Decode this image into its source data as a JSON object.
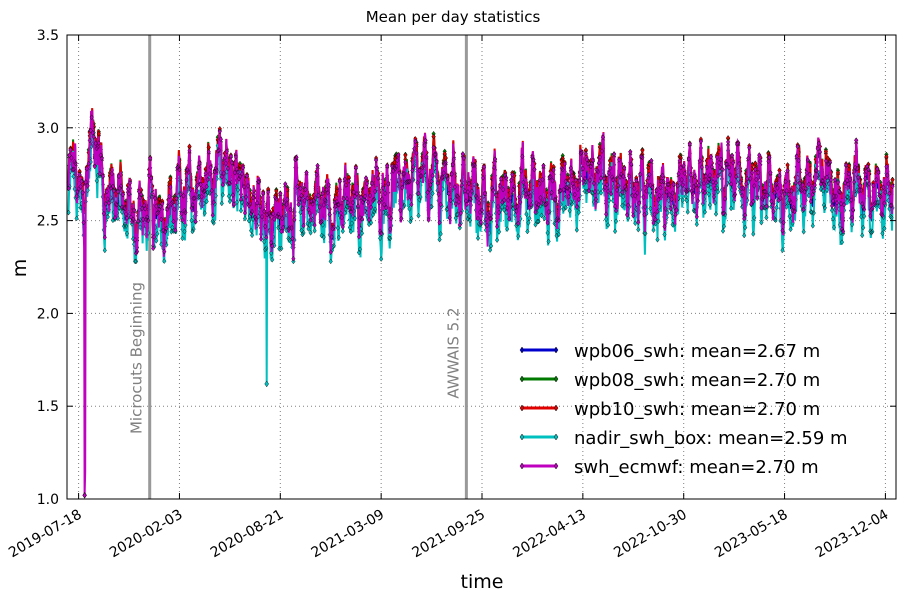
{
  "chart_data": {
    "type": "line",
    "title": "Mean per day statistics",
    "xlabel": "time",
    "ylabel": "m",
    "x_range": [
      "2019-06-25",
      "2023-12-25"
    ],
    "ylim": [
      1.0,
      3.5
    ],
    "grid": true,
    "legend_position": "lower-right",
    "x_ticks": [
      "2019-07-18",
      "2020-02-03",
      "2020-08-21",
      "2021-03-09",
      "2021-09-25",
      "2022-04-13",
      "2022-10-30",
      "2023-05-18",
      "2023-12-04"
    ],
    "y_ticks": [
      "1.0",
      "1.5",
      "2.0",
      "2.5",
      "3.0",
      "3.5"
    ],
    "events": [
      {
        "date": "2019-12-06",
        "label": "Microcuts Beginning"
      },
      {
        "date": "2021-08-25",
        "label": "AWWAIS 5.2"
      }
    ],
    "outliers": [
      {
        "series": "nadir_swh_box",
        "date": "2020-07-25",
        "value": 1.62
      },
      {
        "series": "swh_ecmwf",
        "date": "2019-07-30",
        "value": 1.02
      }
    ],
    "series": [
      {
        "name": "wpb06_swh",
        "label": "wpb06_swh: mean=2.67 m",
        "color": "#0000cc",
        "mean": 2.67,
        "offset": 0.0
      },
      {
        "name": "wpb08_swh",
        "label": "wpb08_swh: mean=2.70 m",
        "color": "#007a00",
        "mean": 2.7,
        "offset": 0.03
      },
      {
        "name": "wpb10_swh",
        "label": "wpb10_swh: mean=2.70 m",
        "color": "#e00000",
        "mean": 2.7,
        "offset": 0.03
      },
      {
        "name": "nadir_swh_box",
        "label": "nadir_swh_box: mean=2.59 m",
        "color": "#00bfbf",
        "mean": 2.59,
        "offset": -0.08
      },
      {
        "name": "swh_ecmwf",
        "label": "swh_ecmwf: mean=2.70 m",
        "color": "#bf00bf",
        "mean": 2.7,
        "offset": 0.0
      }
    ],
    "profile": [
      {
        "date": "2019-07-01",
        "value": 2.68
      },
      {
        "date": "2019-07-10",
        "value": 2.86
      },
      {
        "date": "2019-07-22",
        "value": 2.55
      },
      {
        "date": "2019-08-05",
        "value": 2.78
      },
      {
        "date": "2019-08-20",
        "value": 3.02
      },
      {
        "date": "2019-09-05",
        "value": 2.62
      },
      {
        "date": "2019-09-25",
        "value": 2.7
      },
      {
        "date": "2019-10-15",
        "value": 2.58
      },
      {
        "date": "2019-11-05",
        "value": 2.5
      },
      {
        "date": "2019-12-01",
        "value": 2.56
      },
      {
        "date": "2020-01-01",
        "value": 2.55
      },
      {
        "date": "2020-02-01",
        "value": 2.62
      },
      {
        "date": "2020-03-01",
        "value": 2.68
      },
      {
        "date": "2020-04-01",
        "value": 2.7
      },
      {
        "date": "2020-05-01",
        "value": 2.78
      },
      {
        "date": "2020-06-01",
        "value": 2.68
      },
      {
        "date": "2020-07-01",
        "value": 2.64
      },
      {
        "date": "2020-08-01",
        "value": 2.52
      },
      {
        "date": "2020-09-01",
        "value": 2.55
      },
      {
        "date": "2020-10-01",
        "value": 2.6
      },
      {
        "date": "2020-11-01",
        "value": 2.62
      },
      {
        "date": "2020-12-01",
        "value": 2.55
      },
      {
        "date": "2021-01-01",
        "value": 2.6
      },
      {
        "date": "2021-02-01",
        "value": 2.62
      },
      {
        "date": "2021-03-01",
        "value": 2.63
      },
      {
        "date": "2021-04-01",
        "value": 2.68
      },
      {
        "date": "2021-05-01",
        "value": 2.72
      },
      {
        "date": "2021-06-01",
        "value": 2.74
      },
      {
        "date": "2021-07-01",
        "value": 2.72
      },
      {
        "date": "2021-08-01",
        "value": 2.7
      },
      {
        "date": "2021-09-01",
        "value": 2.66
      },
      {
        "date": "2021-10-01",
        "value": 2.6
      },
      {
        "date": "2021-11-01",
        "value": 2.62
      },
      {
        "date": "2021-12-01",
        "value": 2.66
      },
      {
        "date": "2022-01-01",
        "value": 2.66
      },
      {
        "date": "2022-02-01",
        "value": 2.64
      },
      {
        "date": "2022-03-01",
        "value": 2.66
      },
      {
        "date": "2022-04-01",
        "value": 2.72
      },
      {
        "date": "2022-05-01",
        "value": 2.78
      },
      {
        "date": "2022-06-01",
        "value": 2.74
      },
      {
        "date": "2022-07-01",
        "value": 2.68
      },
      {
        "date": "2022-08-01",
        "value": 2.66
      },
      {
        "date": "2022-09-01",
        "value": 2.62
      },
      {
        "date": "2022-10-01",
        "value": 2.64
      },
      {
        "date": "2022-11-01",
        "value": 2.66
      },
      {
        "date": "2022-12-01",
        "value": 2.7
      },
      {
        "date": "2023-01-01",
        "value": 2.72
      },
      {
        "date": "2023-02-01",
        "value": 2.74
      },
      {
        "date": "2023-03-01",
        "value": 2.7
      },
      {
        "date": "2023-04-01",
        "value": 2.66
      },
      {
        "date": "2023-05-01",
        "value": 2.64
      },
      {
        "date": "2023-06-01",
        "value": 2.68
      },
      {
        "date": "2023-07-01",
        "value": 2.7
      },
      {
        "date": "2023-08-01",
        "value": 2.76
      },
      {
        "date": "2023-09-01",
        "value": 2.66
      },
      {
        "date": "2023-10-01",
        "value": 2.68
      },
      {
        "date": "2023-11-01",
        "value": 2.72
      },
      {
        "date": "2023-12-01",
        "value": 2.62
      },
      {
        "date": "2023-12-15",
        "value": 2.7
      }
    ]
  }
}
